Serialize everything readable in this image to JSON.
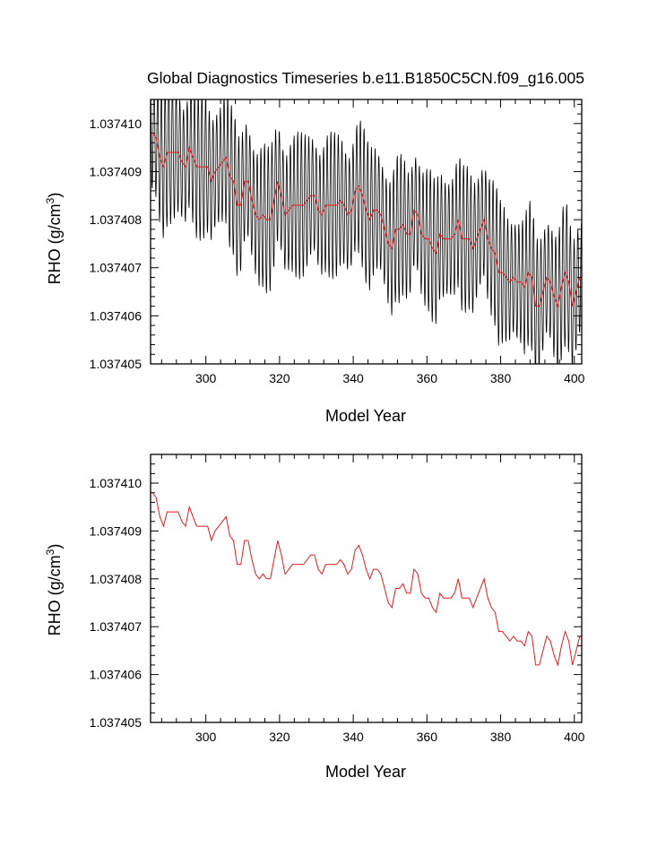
{
  "title": "Global Diagnostics Timeseries b.e11.B1850C5CN.f09_g16.005",
  "chart_data": [
    {
      "type": "line",
      "panel": "top",
      "title": "Global Diagnostics Timeseries b.e11.B1850C5CN.f09_g16.005",
      "xlabel": "Model Year",
      "ylabel": "RHO (g/cm",
      "ylabel_sup": "3",
      "ylabel_close": ")",
      "xlim": [
        285,
        402
      ],
      "ylim": [
        1.037405,
        1.0374105
      ],
      "xticks": [
        "300",
        "320",
        "340",
        "360",
        "380",
        "400"
      ],
      "yticks": [
        "1.037405",
        "1.037406",
        "1.037407",
        "1.037408",
        "1.037409",
        "1.037410"
      ],
      "series": [
        {
          "style": "monthly",
          "color": "#000000",
          "amplitude": 1.35e-06,
          "period_years": 1
        },
        {
          "style": "annual",
          "color": "#e41a1c"
        }
      ]
    },
    {
      "type": "line",
      "panel": "bottom",
      "title": "",
      "xlabel": "Model Year",
      "ylabel": "RHO (g/cm",
      "ylabel_sup": "3",
      "ylabel_close": ")",
      "xlim": [
        285,
        402
      ],
      "ylim": [
        1.037405,
        1.0374106
      ],
      "xticks": [
        "300",
        "320",
        "340",
        "360",
        "380",
        "400"
      ],
      "yticks": [
        "1.037405",
        "1.037406",
        "1.037407",
        "1.037408",
        "1.037409",
        "1.037410"
      ],
      "series": [
        {
          "style": "annual",
          "color": "#e41a1c"
        }
      ]
    }
  ],
  "annual_mean": {
    "x": [
      285.5,
      286.5,
      287.5,
      288.5,
      289.5,
      290.5,
      291.5,
      292.5,
      293.5,
      294.5,
      295.5,
      296.5,
      297.5,
      298.5,
      299.5,
      300.5,
      301.5,
      302.5,
      303.5,
      304.5,
      305.5,
      306.5,
      307.5,
      308.5,
      309.5,
      310.5,
      311.5,
      312.5,
      313.5,
      314.5,
      315.5,
      316.5,
      317.5,
      318.5,
      319.5,
      320.5,
      321.5,
      322.5,
      323.5,
      324.5,
      325.5,
      326.5,
      327.5,
      328.5,
      329.5,
      330.5,
      331.5,
      332.5,
      333.5,
      334.5,
      335.5,
      336.5,
      337.5,
      338.5,
      339.5,
      340.5,
      341.5,
      342.5,
      343.5,
      344.5,
      345.5,
      346.5,
      347.5,
      348.5,
      349.5,
      350.5,
      351.5,
      352.5,
      353.5,
      354.5,
      355.5,
      356.5,
      357.5,
      358.5,
      359.5,
      360.5,
      361.5,
      362.5,
      363.5,
      364.5,
      365.5,
      366.5,
      367.5,
      368.5,
      369.5,
      370.5,
      371.5,
      372.5,
      373.5,
      374.5,
      375.5,
      376.5,
      377.5,
      378.5,
      379.5,
      380.5,
      381.5,
      382.5,
      383.5,
      384.5,
      385.5,
      386.5,
      387.5,
      388.5,
      389.5,
      390.5,
      391.5,
      392.5,
      393.5,
      394.5,
      395.5,
      396.5,
      397.5,
      398.5,
      399.5,
      400.5,
      401.5
    ],
    "y": [
      1.0374098,
      1.0374097,
      1.0374093,
      1.0374091,
      1.0374094,
      1.0374094,
      1.0374094,
      1.0374094,
      1.0374092,
      1.0374091,
      1.0374095,
      1.0374093,
      1.0374091,
      1.0374091,
      1.0374091,
      1.0374091,
      1.0374088,
      1.037409,
      1.0374091,
      1.0374092,
      1.0374093,
      1.0374089,
      1.0374088,
      1.0374083,
      1.0374083,
      1.0374088,
      1.0374088,
      1.0374084,
      1.0374081,
      1.037408,
      1.0374081,
      1.037408,
      1.037408,
      1.0374084,
      1.0374088,
      1.0374085,
      1.0374081,
      1.0374082,
      1.0374083,
      1.0374083,
      1.0374083,
      1.0374083,
      1.0374084,
      1.0374085,
      1.0374085,
      1.0374082,
      1.0374081,
      1.0374083,
      1.0374083,
      1.0374083,
      1.0374083,
      1.0374084,
      1.0374083,
      1.0374081,
      1.0374082,
      1.0374086,
      1.0374087,
      1.0374085,
      1.0374082,
      1.037408,
      1.0374082,
      1.0374082,
      1.0374081,
      1.0374078,
      1.0374075,
      1.0374074,
      1.0374078,
      1.0374078,
      1.0374079,
      1.0374077,
      1.0374077,
      1.0374082,
      1.0374081,
      1.0374077,
      1.0374076,
      1.0374076,
      1.0374074,
      1.0374073,
      1.0374077,
      1.0374076,
      1.0374076,
      1.0374076,
      1.0374077,
      1.037408,
      1.0374076,
      1.0374076,
      1.0374076,
      1.0374074,
      1.0374076,
      1.0374078,
      1.037408,
      1.0374076,
      1.0374074,
      1.0374073,
      1.0374069,
      1.0374069,
      1.0374068,
      1.0374067,
      1.0374068,
      1.0374067,
      1.0374067,
      1.0374066,
      1.0374069,
      1.0374068,
      1.0374062,
      1.0374062,
      1.0374065,
      1.0374068,
      1.0374067,
      1.0374064,
      1.0374062,
      1.0374066,
      1.0374069,
      1.0374067,
      1.0374062,
      1.0374065,
      1.0374068
    ]
  }
}
